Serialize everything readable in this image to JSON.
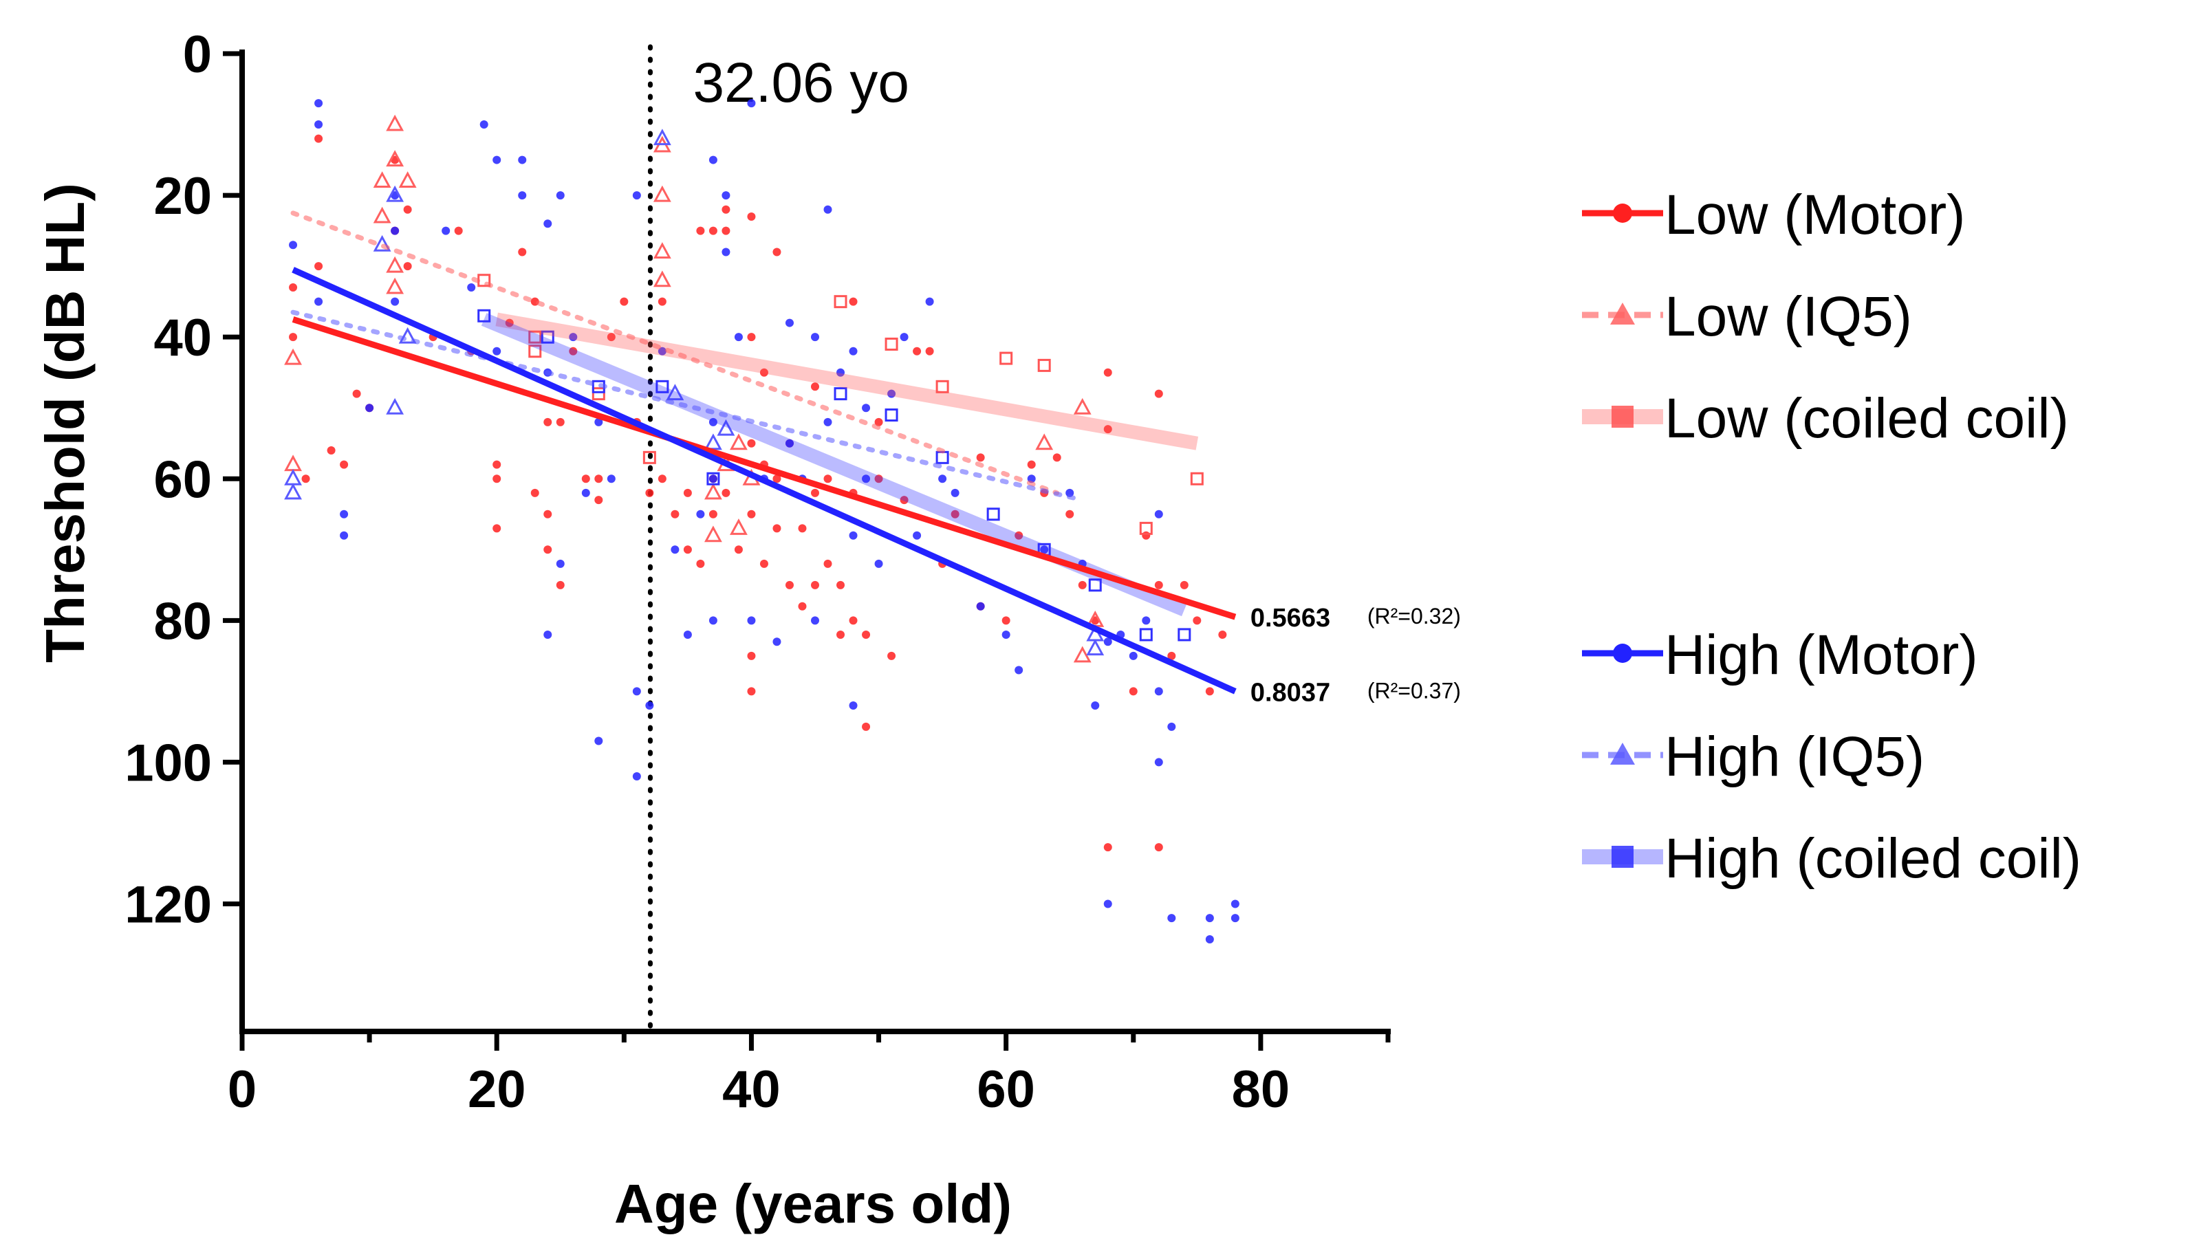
{
  "chart_data": {
    "type": "scatter",
    "title": "",
    "xlabel": "Age (years old)",
    "ylabel": "Threshold (dB HL)",
    "xlim": [
      0,
      90
    ],
    "ylim": [
      0,
      138
    ],
    "y_inverted": true,
    "x_ticks": [
      0,
      20,
      40,
      60,
      80
    ],
    "x_minor_ticks": [
      10,
      30,
      50,
      70,
      90
    ],
    "y_ticks": [
      0,
      20,
      40,
      60,
      80,
      100,
      120
    ],
    "vertical_line": {
      "x": 32.06,
      "label": "32.06 yo",
      "style": "dotted"
    },
    "series": [
      {
        "name": "Low (Motor)",
        "color": "#ff2020",
        "marker": "circle",
        "line": "solid",
        "fit": {
          "x": [
            4,
            78
          ],
          "y": [
            37.5,
            79.5
          ]
        },
        "points": [
          [
            4,
            33
          ],
          [
            4,
            40
          ],
          [
            5,
            60
          ],
          [
            6,
            12
          ],
          [
            6,
            30
          ],
          [
            7,
            56
          ],
          [
            8,
            58
          ],
          [
            9,
            48
          ],
          [
            10,
            50
          ],
          [
            12,
            15
          ],
          [
            12,
            25
          ],
          [
            13,
            22
          ],
          [
            13,
            30
          ],
          [
            15,
            40
          ],
          [
            17,
            25
          ],
          [
            18,
            42
          ],
          [
            20,
            58
          ],
          [
            20,
            60
          ],
          [
            20,
            67
          ],
          [
            21,
            38
          ],
          [
            22,
            28
          ],
          [
            23,
            35
          ],
          [
            23,
            62
          ],
          [
            24,
            52
          ],
          [
            24,
            65
          ],
          [
            24,
            70
          ],
          [
            25,
            52
          ],
          [
            25,
            75
          ],
          [
            26,
            42
          ],
          [
            27,
            60
          ],
          [
            28,
            60
          ],
          [
            28,
            63
          ],
          [
            29,
            40
          ],
          [
            30,
            35
          ],
          [
            31,
            52
          ],
          [
            32,
            62
          ],
          [
            33,
            35
          ],
          [
            33,
            60
          ],
          [
            34,
            65
          ],
          [
            35,
            62
          ],
          [
            35,
            70
          ],
          [
            36,
            25
          ],
          [
            36,
            72
          ],
          [
            37,
            25
          ],
          [
            37,
            60
          ],
          [
            37,
            65
          ],
          [
            38,
            22
          ],
          [
            38,
            25
          ],
          [
            38,
            62
          ],
          [
            39,
            70
          ],
          [
            40,
            23
          ],
          [
            40,
            40
          ],
          [
            40,
            55
          ],
          [
            40,
            65
          ],
          [
            40,
            85
          ],
          [
            40,
            90
          ],
          [
            41,
            45
          ],
          [
            41,
            58
          ],
          [
            41,
            72
          ],
          [
            42,
            28
          ],
          [
            42,
            60
          ],
          [
            42,
            67
          ],
          [
            43,
            55
          ],
          [
            43,
            75
          ],
          [
            44,
            67
          ],
          [
            44,
            78
          ],
          [
            45,
            47
          ],
          [
            45,
            62
          ],
          [
            45,
            75
          ],
          [
            46,
            60
          ],
          [
            46,
            72
          ],
          [
            47,
            75
          ],
          [
            47,
            82
          ],
          [
            48,
            35
          ],
          [
            48,
            62
          ],
          [
            48,
            80
          ],
          [
            49,
            95
          ],
          [
            49,
            82
          ],
          [
            50,
            52
          ],
          [
            50,
            60
          ],
          [
            51,
            85
          ],
          [
            52,
            63
          ],
          [
            53,
            42
          ],
          [
            54,
            42
          ],
          [
            55,
            72
          ],
          [
            56,
            65
          ],
          [
            58,
            78
          ],
          [
            58,
            57
          ],
          [
            60,
            80
          ],
          [
            61,
            68
          ],
          [
            62,
            58
          ],
          [
            63,
            62
          ],
          [
            64,
            57
          ],
          [
            65,
            65
          ],
          [
            66,
            75
          ],
          [
            67,
            80
          ],
          [
            68,
            112
          ],
          [
            68,
            45
          ],
          [
            68,
            53
          ],
          [
            70,
            90
          ],
          [
            71,
            68
          ],
          [
            72,
            75
          ],
          [
            72,
            48
          ],
          [
            72,
            112
          ],
          [
            73,
            85
          ],
          [
            74,
            75
          ],
          [
            75,
            80
          ],
          [
            76,
            90
          ],
          [
            77,
            82
          ]
        ]
      },
      {
        "name": "Low (IQ5)",
        "color": "#ff6060",
        "marker": "triangle",
        "line": "dashed",
        "fit": {
          "x": [
            4,
            64
          ],
          "y": [
            22.5,
            62
          ]
        },
        "points": [
          [
            4,
            43
          ],
          [
            4,
            58
          ],
          [
            11,
            18
          ],
          [
            11,
            23
          ],
          [
            12,
            10
          ],
          [
            12,
            15
          ],
          [
            12,
            30
          ],
          [
            13,
            18
          ],
          [
            12,
            33
          ],
          [
            33,
            13
          ],
          [
            33,
            20
          ],
          [
            33,
            28
          ],
          [
            33,
            32
          ],
          [
            37,
            62
          ],
          [
            37,
            68
          ],
          [
            38,
            58
          ],
          [
            39,
            55
          ],
          [
            39,
            67
          ],
          [
            40,
            60
          ],
          [
            63,
            55
          ],
          [
            66,
            50
          ],
          [
            66,
            85
          ],
          [
            67,
            80
          ]
        ]
      },
      {
        "name": "Low (coiled coil)",
        "color": "#ff5555",
        "marker": "square",
        "line": "thick-faded",
        "fit": {
          "x": [
            20,
            75
          ],
          "y": [
            37.5,
            55
          ]
        },
        "points": [
          [
            19,
            32
          ],
          [
            23,
            40
          ],
          [
            23,
            42
          ],
          [
            28,
            48
          ],
          [
            32,
            57
          ],
          [
            47,
            35
          ],
          [
            51,
            41
          ],
          [
            55,
            47
          ],
          [
            60,
            43
          ],
          [
            63,
            44
          ],
          [
            71,
            67
          ],
          [
            75,
            60
          ]
        ]
      },
      {
        "name": "High (Motor)",
        "color": "#2222ff",
        "marker": "circle",
        "line": "solid",
        "fit": {
          "x": [
            4,
            78
          ],
          "y": [
            30.5,
            90
          ]
        },
        "points": [
          [
            4,
            27
          ],
          [
            6,
            7
          ],
          [
            6,
            10
          ],
          [
            6,
            35
          ],
          [
            8,
            65
          ],
          [
            8,
            68
          ],
          [
            10,
            50
          ],
          [
            12,
            20
          ],
          [
            12,
            25
          ],
          [
            12,
            35
          ],
          [
            16,
            25
          ],
          [
            18,
            33
          ],
          [
            19,
            10
          ],
          [
            20,
            15
          ],
          [
            20,
            42
          ],
          [
            22,
            15
          ],
          [
            22,
            20
          ],
          [
            24,
            24
          ],
          [
            24,
            45
          ],
          [
            24,
            82
          ],
          [
            25,
            20
          ],
          [
            25,
            72
          ],
          [
            26,
            40
          ],
          [
            27,
            62
          ],
          [
            28,
            52
          ],
          [
            28,
            97
          ],
          [
            29,
            60
          ],
          [
            31,
            20
          ],
          [
            31,
            90
          ],
          [
            31,
            102
          ],
          [
            32,
            92
          ],
          [
            33,
            42
          ],
          [
            34,
            70
          ],
          [
            35,
            82
          ],
          [
            36,
            65
          ],
          [
            37,
            15
          ],
          [
            37,
            52
          ],
          [
            37,
            80
          ],
          [
            37,
            60
          ],
          [
            38,
            20
          ],
          [
            38,
            28
          ],
          [
            39,
            40
          ],
          [
            40,
            7
          ],
          [
            40,
            80
          ],
          [
            41,
            60
          ],
          [
            42,
            83
          ],
          [
            43,
            38
          ],
          [
            43,
            55
          ],
          [
            44,
            60
          ],
          [
            45,
            40
          ],
          [
            45,
            80
          ],
          [
            46,
            52
          ],
          [
            46,
            22
          ],
          [
            47,
            45
          ],
          [
            48,
            42
          ],
          [
            48,
            68
          ],
          [
            48,
            92
          ],
          [
            49,
            50
          ],
          [
            49,
            60
          ],
          [
            50,
            72
          ],
          [
            51,
            48
          ],
          [
            52,
            40
          ],
          [
            53,
            68
          ],
          [
            54,
            35
          ],
          [
            55,
            60
          ],
          [
            56,
            62
          ],
          [
            58,
            78
          ],
          [
            60,
            82
          ],
          [
            61,
            87
          ],
          [
            62,
            60
          ],
          [
            63,
            70
          ],
          [
            65,
            62
          ],
          [
            66,
            72
          ],
          [
            67,
            92
          ],
          [
            68,
            83
          ],
          [
            68,
            120
          ],
          [
            69,
            82
          ],
          [
            70,
            85
          ],
          [
            71,
            80
          ],
          [
            72,
            65
          ],
          [
            72,
            90
          ],
          [
            72,
            100
          ],
          [
            73,
            95
          ],
          [
            73,
            122
          ],
          [
            76,
            122
          ],
          [
            76,
            125
          ],
          [
            78,
            120
          ],
          [
            78,
            122
          ]
        ]
      },
      {
        "name": "High (IQ5)",
        "color": "#5a5aff",
        "marker": "triangle",
        "line": "dashed",
        "fit": {
          "x": [
            4,
            66
          ],
          "y": [
            36.5,
            63
          ]
        },
        "points": [
          [
            4,
            60
          ],
          [
            4,
            62
          ],
          [
            11,
            27
          ],
          [
            12,
            20
          ],
          [
            12,
            50
          ],
          [
            13,
            40
          ],
          [
            33,
            12
          ],
          [
            34,
            48
          ],
          [
            37,
            55
          ],
          [
            38,
            53
          ],
          [
            67,
            82
          ],
          [
            67,
            84
          ]
        ]
      },
      {
        "name": "High (coiled coil)",
        "color": "#3030ff",
        "marker": "square",
        "line": "thick-faded",
        "fit": {
          "x": [
            19,
            74
          ],
          "y": [
            37.5,
            78.5
          ]
        },
        "points": [
          [
            19,
            37
          ],
          [
            24,
            40
          ],
          [
            28,
            47
          ],
          [
            33,
            47
          ],
          [
            37,
            60
          ],
          [
            47,
            48
          ],
          [
            51,
            51
          ],
          [
            55,
            57
          ],
          [
            59,
            65
          ],
          [
            63,
            70
          ],
          [
            67,
            75
          ],
          [
            71,
            82
          ],
          [
            74,
            82
          ]
        ]
      }
    ],
    "annotations": [
      {
        "series": "Low (Motor)",
        "slope": "0.5663",
        "r2": "(R²=0.32)"
      },
      {
        "series": "High (Motor)",
        "slope": "0.8037",
        "r2": "(R²=0.37)"
      }
    ],
    "legend": {
      "position": "right"
    }
  }
}
